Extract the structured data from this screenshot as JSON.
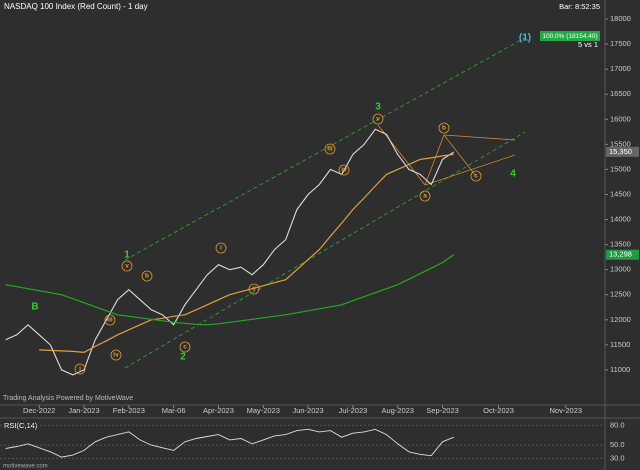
{
  "header": {
    "bar_time": "Bar: 8:52:35",
    "target": "100.0% (18154.40)",
    "ratio": "5 vs 1",
    "watermark": "Trading Analysis Powered by MotiveWave",
    "site": "motivewave.com"
  },
  "chart_data": [
    {
      "type": "line",
      "title": "NASDAQ 100 Index (Red Count) - 1 day",
      "categories": [
        null,
        null,
        null,
        "Dec-2022",
        null,
        null,
        null,
        "Jan-2023",
        null,
        null,
        null,
        "Feb-2023",
        null,
        null,
        null,
        "Mar-06",
        null,
        null,
        null,
        "Apr-2023",
        null,
        null,
        null,
        "May-2023",
        null,
        null,
        null,
        "Jun-2023",
        null,
        null,
        null,
        "Jul-2023",
        null,
        null,
        null,
        "Aug-2023",
        null,
        null,
        null,
        "Sep-2023",
        null,
        null,
        null,
        null,
        "Oct-2023",
        null,
        null,
        null,
        null,
        null,
        "Nov-2023",
        null,
        null,
        null
      ],
      "series": [
        {
          "color": "#dddddd",
          "last_label": "15,350",
          "values": [
            11600,
            11700,
            11900,
            11700,
            11500,
            11000,
            10900,
            11000,
            11600,
            12000,
            12400,
            12600,
            12400,
            12200,
            12100,
            11900,
            12300,
            12600,
            12900,
            13100,
            13000,
            13050,
            12900,
            13100,
            13400,
            13600,
            14200,
            14500,
            14700,
            15000,
            14900,
            15300,
            15500,
            15800,
            15700,
            15300,
            15000,
            14900,
            14700,
            15200,
            15350,
            null,
            null,
            null,
            null,
            null,
            null,
            null,
            null,
            null,
            null,
            null,
            null,
            null
          ]
        },
        {
          "color": "#e0a040",
          "values": [
            null,
            null,
            null,
            11400,
            11390,
            11380,
            11370,
            11350,
            11470,
            11580,
            11700,
            11800,
            11900,
            12000,
            12030,
            12070,
            12100,
            12200,
            12300,
            12400,
            12500,
            12560,
            12620,
            12680,
            12740,
            12800,
            13000,
            13200,
            13400,
            13670,
            13930,
            14200,
            14430,
            14670,
            14900,
            15000,
            15100,
            15200,
            15230,
            15270,
            15300,
            null,
            null,
            null,
            null,
            null,
            null,
            null,
            null,
            null,
            null,
            null,
            null,
            null
          ]
        },
        {
          "color": "#22aa22",
          "last_label": "13,298",
          "values": [
            12700,
            12660,
            12620,
            12580,
            12540,
            12500,
            12420,
            12340,
            12260,
            12180,
            12100,
            12070,
            12040,
            12010,
            11980,
            11950,
            11930,
            11910,
            11900,
            11920,
            11950,
            11980,
            12010,
            12040,
            12070,
            12100,
            12140,
            12180,
            12220,
            12260,
            12300,
            12380,
            12460,
            12540,
            12620,
            12700,
            12810,
            12920,
            13030,
            13140,
            13298,
            null,
            null,
            null,
            null,
            null,
            null,
            null,
            null,
            null,
            null,
            null,
            null,
            null
          ]
        }
      ],
      "ylim": [
        10300,
        18380
      ],
      "yticks": [
        11000,
        11500,
        12000,
        12500,
        13000,
        13500,
        14000,
        14500,
        15000,
        15500,
        16000,
        16500,
        17000,
        17500,
        18000
      ],
      "annotations": [
        {
          "text": "B",
          "color": "#33cc33"
        },
        {
          "text": "1",
          "color": "#33cc33"
        },
        {
          "text": "2",
          "color": "#33cc33"
        },
        {
          "text": "3",
          "color": "#33cc33"
        },
        {
          "text": "4",
          "color": "#33cc33"
        },
        {
          "text": "(1)",
          "color": "#44bbdd"
        },
        {
          "text": "i",
          "color": "#e09a30",
          "circled": true
        },
        {
          "text": "iii",
          "color": "#e09a30",
          "circled": true
        },
        {
          "text": "iv",
          "color": "#e09a30",
          "circled": true
        },
        {
          "text": "v",
          "color": "#e09a30",
          "circled": true
        },
        {
          "text": "b",
          "color": "#e09a30",
          "circled": true
        },
        {
          "text": "c",
          "color": "#e09a30",
          "circled": true
        },
        {
          "text": "i",
          "color": "#e09a30",
          "circled": true
        },
        {
          "text": "ii",
          "color": "#e09a30",
          "circled": true
        },
        {
          "text": "iii",
          "color": "#e09a30",
          "circled": true
        },
        {
          "text": "iv",
          "color": "#e09a30",
          "circled": true
        },
        {
          "text": "v",
          "color": "#e09a30",
          "circled": true
        },
        {
          "text": "a",
          "color": "#e09a30",
          "circled": true
        },
        {
          "text": "b",
          "color": "#e09a30",
          "circled": true
        },
        {
          "text": "c",
          "color": "#e09a30",
          "circled": true
        }
      ]
    },
    {
      "type": "line",
      "title": "RSI(C,14)",
      "color": "#dddddd",
      "values": [
        45,
        48,
        52,
        46,
        40,
        32,
        35,
        42,
        55,
        62,
        66,
        70,
        58,
        50,
        46,
        42,
        55,
        60,
        63,
        66,
        58,
        60,
        52,
        58,
        64,
        66,
        72,
        74,
        70,
        72,
        62,
        68,
        70,
        74,
        66,
        52,
        40,
        36,
        34,
        55,
        62,
        null,
        null,
        null,
        null,
        null,
        null,
        null,
        null,
        null,
        null,
        null,
        null,
        null
      ],
      "ylim": [
        20,
        88
      ],
      "yticks": [
        {
          "value": 30,
          "label": "30.0"
        },
        {
          "value": 50,
          "label": "50.0"
        },
        {
          "value": 80,
          "label": "80.0"
        }
      ]
    }
  ]
}
